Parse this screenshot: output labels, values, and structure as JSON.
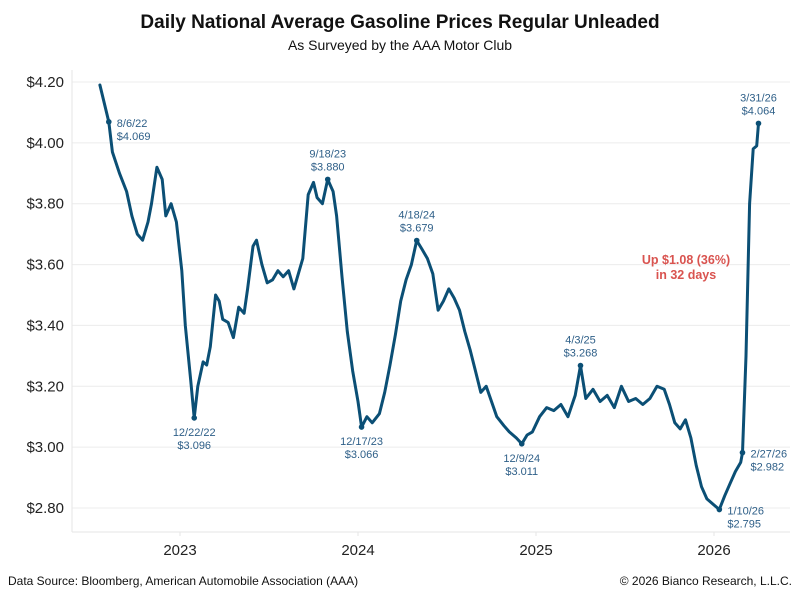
{
  "header": {
    "title": "Daily National Average Gasoline Prices Regular Unleaded",
    "subtitle": "As Surveyed by the AAA Motor Club"
  },
  "footer": {
    "source": "Data Source: Bloomberg, American Automobile Association (AAA)",
    "copyright": "© 2026 Bianco Research, L.L.C."
  },
  "colors": {
    "line": "#0b4f75",
    "annotation": "#2e5f88",
    "callout": "#d9534f",
    "grid": "#ececec"
  },
  "chart_data": {
    "type": "line",
    "title": "Daily National Average Gasoline Prices Regular Unleaded",
    "subtitle": "As Surveyed by the AAA Motor Club",
    "xlabel": "",
    "ylabel": "",
    "ylim": [
      2.75,
      4.25
    ],
    "xlim": [
      2022.42,
      2026.33
    ],
    "grid": true,
    "legend": "none",
    "y_ticks": [
      {
        "value": 4.2,
        "label": "$4.20"
      },
      {
        "value": 4.0,
        "label": "$4.00"
      },
      {
        "value": 3.8,
        "label": "$3.80"
      },
      {
        "value": 3.6,
        "label": "$3.60"
      },
      {
        "value": 3.4,
        "label": "$3.40"
      },
      {
        "value": 3.2,
        "label": "$3.20"
      },
      {
        "value": 3.0,
        "label": "$3.00"
      },
      {
        "value": 2.8,
        "label": "$2.80"
      }
    ],
    "x_ticks": [
      {
        "value": 2023.0,
        "label": "2023"
      },
      {
        "value": 2024.0,
        "label": "2024"
      },
      {
        "value": 2025.0,
        "label": "2025"
      },
      {
        "value": 2026.0,
        "label": "2026"
      }
    ],
    "series": [
      {
        "name": "Regular Unleaded",
        "points": [
          [
            2022.55,
            4.19
          ],
          [
            2022.6,
            4.069
          ],
          [
            2022.62,
            3.97
          ],
          [
            2022.66,
            3.9
          ],
          [
            2022.7,
            3.84
          ],
          [
            2022.73,
            3.76
          ],
          [
            2022.76,
            3.7
          ],
          [
            2022.79,
            3.68
          ],
          [
            2022.82,
            3.74
          ],
          [
            2022.84,
            3.8
          ],
          [
            2022.87,
            3.92
          ],
          [
            2022.9,
            3.88
          ],
          [
            2022.92,
            3.76
          ],
          [
            2022.95,
            3.8
          ],
          [
            2022.98,
            3.74
          ],
          [
            2023.01,
            3.58
          ],
          [
            2023.03,
            3.4
          ],
          [
            2023.06,
            3.22
          ],
          [
            2023.08,
            3.096
          ],
          [
            2023.1,
            3.2
          ],
          [
            2023.13,
            3.28
          ],
          [
            2023.15,
            3.27
          ],
          [
            2023.17,
            3.33
          ],
          [
            2023.2,
            3.5
          ],
          [
            2023.22,
            3.48
          ],
          [
            2023.24,
            3.42
          ],
          [
            2023.27,
            3.41
          ],
          [
            2023.3,
            3.36
          ],
          [
            2023.33,
            3.46
          ],
          [
            2023.36,
            3.44
          ],
          [
            2023.38,
            3.52
          ],
          [
            2023.41,
            3.66
          ],
          [
            2023.43,
            3.68
          ],
          [
            2023.46,
            3.6
          ],
          [
            2023.49,
            3.54
          ],
          [
            2023.52,
            3.55
          ],
          [
            2023.55,
            3.58
          ],
          [
            2023.58,
            3.56
          ],
          [
            2023.61,
            3.58
          ],
          [
            2023.64,
            3.52
          ],
          [
            2023.66,
            3.56
          ],
          [
            2023.69,
            3.62
          ],
          [
            2023.72,
            3.83
          ],
          [
            2023.75,
            3.87
          ],
          [
            2023.77,
            3.82
          ],
          [
            2023.8,
            3.8
          ],
          [
            2023.83,
            3.88
          ],
          [
            2023.86,
            3.84
          ],
          [
            2023.88,
            3.76
          ],
          [
            2023.91,
            3.56
          ],
          [
            2023.94,
            3.38
          ],
          [
            2023.97,
            3.25
          ],
          [
            2024.0,
            3.15
          ],
          [
            2024.02,
            3.066
          ],
          [
            2024.05,
            3.1
          ],
          [
            2024.08,
            3.08
          ],
          [
            2024.12,
            3.11
          ],
          [
            2024.15,
            3.18
          ],
          [
            2024.18,
            3.27
          ],
          [
            2024.21,
            3.37
          ],
          [
            2024.24,
            3.48
          ],
          [
            2024.27,
            3.55
          ],
          [
            2024.3,
            3.6
          ],
          [
            2024.33,
            3.679
          ],
          [
            2024.36,
            3.65
          ],
          [
            2024.39,
            3.62
          ],
          [
            2024.42,
            3.57
          ],
          [
            2024.45,
            3.45
          ],
          [
            2024.48,
            3.48
          ],
          [
            2024.51,
            3.52
          ],
          [
            2024.54,
            3.49
          ],
          [
            2024.57,
            3.45
          ],
          [
            2024.6,
            3.38
          ],
          [
            2024.63,
            3.32
          ],
          [
            2024.66,
            3.25
          ],
          [
            2024.69,
            3.18
          ],
          [
            2024.72,
            3.2
          ],
          [
            2024.75,
            3.15
          ],
          [
            2024.78,
            3.1
          ],
          [
            2024.82,
            3.07
          ],
          [
            2024.85,
            3.05
          ],
          [
            2024.89,
            3.03
          ],
          [
            2024.92,
            3.011
          ],
          [
            2024.95,
            3.04
          ],
          [
            2024.98,
            3.05
          ],
          [
            2025.02,
            3.1
          ],
          [
            2025.06,
            3.13
          ],
          [
            2025.1,
            3.12
          ],
          [
            2025.14,
            3.14
          ],
          [
            2025.18,
            3.1
          ],
          [
            2025.22,
            3.17
          ],
          [
            2025.25,
            3.268
          ],
          [
            2025.28,
            3.16
          ],
          [
            2025.32,
            3.19
          ],
          [
            2025.36,
            3.15
          ],
          [
            2025.4,
            3.17
          ],
          [
            2025.44,
            3.13
          ],
          [
            2025.48,
            3.2
          ],
          [
            2025.52,
            3.15
          ],
          [
            2025.56,
            3.16
          ],
          [
            2025.6,
            3.14
          ],
          [
            2025.64,
            3.16
          ],
          [
            2025.68,
            3.2
          ],
          [
            2025.72,
            3.19
          ],
          [
            2025.75,
            3.14
          ],
          [
            2025.78,
            3.08
          ],
          [
            2025.81,
            3.06
          ],
          [
            2025.84,
            3.09
          ],
          [
            2025.87,
            3.03
          ],
          [
            2025.9,
            2.94
          ],
          [
            2025.93,
            2.87
          ],
          [
            2025.96,
            2.83
          ],
          [
            2026.0,
            2.81
          ],
          [
            2026.03,
            2.795
          ],
          [
            2026.06,
            2.84
          ],
          [
            2026.09,
            2.88
          ],
          [
            2026.12,
            2.92
          ],
          [
            2026.15,
            2.95
          ],
          [
            2026.16,
            2.982
          ],
          [
            2026.18,
            3.3
          ],
          [
            2026.2,
            3.8
          ],
          [
            2026.22,
            3.98
          ],
          [
            2026.24,
            3.99
          ],
          [
            2026.25,
            4.064
          ]
        ]
      }
    ],
    "annotations": [
      {
        "date": "8/6/22",
        "value_label": "$4.069",
        "x": 2022.6,
        "y": 4.069,
        "position": "right"
      },
      {
        "date": "12/22/22",
        "value_label": "$3.096",
        "x": 2023.08,
        "y": 3.096,
        "position": "below"
      },
      {
        "date": "9/18/23",
        "value_label": "$3.880",
        "x": 2023.83,
        "y": 3.88,
        "position": "above"
      },
      {
        "date": "12/17/23",
        "value_label": "$3.066",
        "x": 2024.02,
        "y": 3.066,
        "position": "below"
      },
      {
        "date": "4/18/24",
        "value_label": "$3.679",
        "x": 2024.33,
        "y": 3.679,
        "position": "above"
      },
      {
        "date": "12/9/24",
        "value_label": "$3.011",
        "x": 2024.92,
        "y": 3.011,
        "position": "below"
      },
      {
        "date": "4/3/25",
        "value_label": "$3.268",
        "x": 2025.25,
        "y": 3.268,
        "position": "above"
      },
      {
        "date": "1/10/26",
        "value_label": "$2.795",
        "x": 2026.03,
        "y": 2.795,
        "position": "right"
      },
      {
        "date": "2/27/26",
        "value_label": "$2.982",
        "x": 2026.16,
        "y": 2.982,
        "position": "right"
      },
      {
        "date": "3/31/26",
        "value_label": "$4.064",
        "x": 2026.25,
        "y": 4.064,
        "position": "above"
      }
    ],
    "callout": {
      "line1": "Up $1.08 (36%)",
      "line2": "in 32 days"
    }
  }
}
